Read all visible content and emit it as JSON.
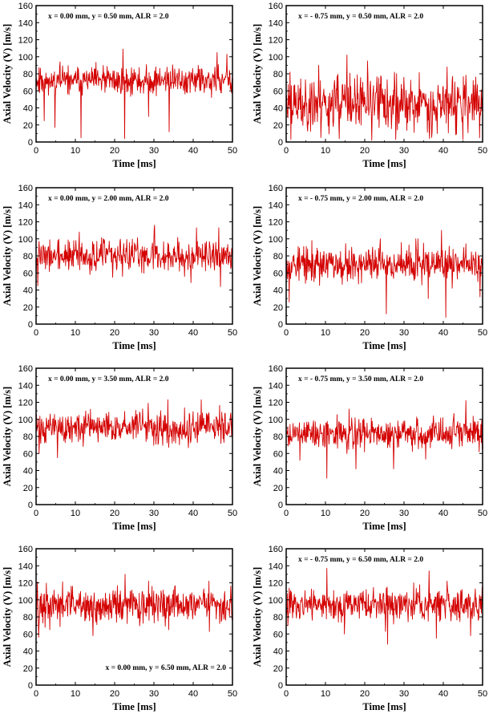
{
  "colors": {
    "series": "#d40000",
    "axis": "#000000",
    "background": "#ffffff"
  },
  "chart_data": [
    {
      "type": "line",
      "id": "p1",
      "annotation": "x = 0.00 mm, y = 0.50 mm, ALR = 2.0",
      "annotation_position": "top-left",
      "xlabel": "Time [ms]",
      "ylabel": "Axial Velocity (V) [m/s]",
      "xlim": [
        0,
        50
      ],
      "ylim": [
        0,
        160
      ],
      "xticks": [
        0,
        10,
        20,
        30,
        40,
        50
      ],
      "yticks": [
        0,
        20,
        40,
        60,
        80,
        100,
        120,
        140,
        160
      ],
      "series": [
        {
          "name": "velocity",
          "mean": 72,
          "spread": 8,
          "dips": [
            [
              2.1,
              25
            ],
            [
              4.8,
              17
            ],
            [
              11.4,
              5
            ],
            [
              22.6,
              4
            ],
            [
              28.7,
              30
            ],
            [
              33.9,
              12
            ]
          ],
          "peaks": [
            [
              22.1,
              109
            ],
            [
              46.1,
              105
            ],
            [
              48.6,
              103
            ]
          ],
          "seed": 11,
          "count": 460
        }
      ]
    },
    {
      "type": "line",
      "id": "p2",
      "annotation": "x = - 0.75 mm, y = 0.50 mm, ALR = 2.0",
      "annotation_position": "top-left",
      "xlabel": "Time [ms]",
      "ylabel": "Axial Velocity (V) [m/s]",
      "xlim": [
        0,
        50
      ],
      "ylim": [
        0,
        160
      ],
      "xticks": [
        0,
        10,
        20,
        30,
        40,
        50
      ],
      "yticks": [
        0,
        20,
        40,
        60,
        80,
        100,
        120,
        140,
        160
      ],
      "series": [
        {
          "name": "velocity",
          "mean": 45,
          "spread": 16,
          "dips": [
            [
              1.2,
              3
            ],
            [
              13.5,
              4
            ],
            [
              21.8,
              2
            ],
            [
              27.9,
              3
            ],
            [
              36.5,
              4
            ],
            [
              45.0,
              3
            ],
            [
              49.2,
              5
            ]
          ],
          "peaks": [
            [
              1.0,
              82
            ],
            [
              8.3,
              90
            ],
            [
              15.5,
              102
            ],
            [
              41.0,
              88
            ]
          ],
          "seed": 23,
          "count": 460
        }
      ]
    },
    {
      "type": "line",
      "id": "p3",
      "annotation": "x = 0.00 mm, y = 2.00 mm, ALR = 2.0",
      "annotation_position": "top-left",
      "xlabel": "Time [ms]",
      "ylabel": "Axial Velocity (V) [m/s]",
      "xlim": [
        0,
        50
      ],
      "ylim": [
        0,
        160
      ],
      "xticks": [
        0,
        10,
        20,
        30,
        40,
        50
      ],
      "yticks": [
        0,
        20,
        40,
        60,
        80,
        100,
        120,
        140,
        160
      ],
      "series": [
        {
          "name": "velocity",
          "mean": 80,
          "spread": 9,
          "dips": [
            [
              0.4,
              45
            ],
            [
              47.0,
              44
            ],
            [
              22.0,
              56
            ]
          ],
          "peaks": [
            [
              30.2,
              116
            ],
            [
              40.8,
              113
            ],
            [
              46.5,
              113
            ],
            [
              11.0,
              108
            ]
          ],
          "seed": 37,
          "count": 460
        }
      ]
    },
    {
      "type": "line",
      "id": "p4",
      "annotation": "x = - 0.75 mm, y = 2.00 mm, ALR = 2.0",
      "annotation_position": "top-left",
      "xlabel": "Time [ms]",
      "ylabel": "Axial Velocity (V) [m/s]",
      "xlim": [
        0,
        50
      ],
      "ylim": [
        0,
        160
      ],
      "xticks": [
        0,
        10,
        20,
        30,
        40,
        50
      ],
      "yticks": [
        0,
        20,
        40,
        60,
        80,
        100,
        120,
        140,
        160
      ],
      "series": [
        {
          "name": "velocity",
          "mean": 70,
          "spread": 10,
          "dips": [
            [
              0.8,
              26
            ],
            [
              25.5,
              12
            ],
            [
              40.6,
              8
            ],
            [
              36.2,
              30
            ],
            [
              49.3,
              32
            ]
          ],
          "peaks": [
            [
              39.5,
              110
            ],
            [
              33.0,
              100
            ],
            [
              6.5,
              98
            ]
          ],
          "seed": 53,
          "count": 460
        }
      ]
    },
    {
      "type": "line",
      "id": "p5",
      "annotation": "x = 0.00 mm, y = 3.50 mm, ALR = 2.0",
      "annotation_position": "top-left",
      "xlabel": "Time [ms]",
      "ylabel": "Axial Velocity (V) [m/s]",
      "xlim": [
        0,
        50
      ],
      "ylim": [
        0,
        160
      ],
      "xticks": [
        0,
        10,
        20,
        30,
        40,
        50
      ],
      "yticks": [
        0,
        20,
        40,
        60,
        80,
        100,
        120,
        140,
        160
      ],
      "series": [
        {
          "name": "velocity",
          "mean": 90,
          "spread": 9,
          "dips": [
            [
              5.4,
              55
            ],
            [
              0.8,
              60
            ]
          ],
          "peaks": [
            [
              33.6,
              123
            ],
            [
              42.0,
              123
            ],
            [
              28.5,
              119
            ]
          ],
          "seed": 71,
          "count": 460
        }
      ]
    },
    {
      "type": "line",
      "id": "p6",
      "annotation": "x = - 0.75 mm, y = 3.50 mm, ALR = 2.0",
      "annotation_position": "top-left",
      "xlabel": "Time [ms]",
      "ylabel": "Axial Velocity (V) [m/s]",
      "xlim": [
        0,
        50
      ],
      "ylim": [
        0,
        160
      ],
      "xticks": [
        0,
        10,
        20,
        30,
        40,
        50
      ],
      "yticks": [
        0,
        20,
        40,
        60,
        80,
        100,
        120,
        140,
        160
      ],
      "series": [
        {
          "name": "velocity",
          "mean": 83,
          "spread": 9,
          "dips": [
            [
              10.3,
              31
            ],
            [
              17.8,
              42
            ],
            [
              27.3,
              42
            ],
            [
              3.5,
              52
            ]
          ],
          "peaks": [
            [
              45.8,
              122
            ],
            [
              16.0,
              112
            ]
          ],
          "seed": 89,
          "count": 460
        }
      ]
    },
    {
      "type": "line",
      "id": "p7",
      "annotation": "x = 0.00 mm, y = 6.50 mm, ALR = 2.0",
      "annotation_position": "bottom-right",
      "xlabel": "Time [ms]",
      "ylabel": "Axial Velocity (V) [m/s]",
      "xlim": [
        0,
        50
      ],
      "ylim": [
        0,
        160
      ],
      "xticks": [
        0,
        10,
        20,
        30,
        40,
        50
      ],
      "yticks": [
        0,
        20,
        40,
        60,
        80,
        100,
        120,
        140,
        160
      ],
      "series": [
        {
          "name": "velocity",
          "mean": 93,
          "spread": 10,
          "dips": [
            [
              3.5,
              65
            ],
            [
              14.5,
              58
            ],
            [
              33.8,
              65
            ]
          ],
          "peaks": [
            [
              22.7,
              130
            ],
            [
              0.3,
              121
            ],
            [
              28.6,
              122
            ],
            [
              44.0,
              122
            ]
          ],
          "seed": 97,
          "count": 460
        }
      ]
    },
    {
      "type": "line",
      "id": "p8",
      "annotation": "x = - 0.75 mm, y = 6.50 mm, ALR = 2.0",
      "annotation_position": "top-left",
      "xlabel": "Time [ms]",
      "ylabel": "Axial Velocity (V) [m/s]",
      "xlim": [
        0,
        50
      ],
      "ylim": [
        0,
        160
      ],
      "xticks": [
        0,
        10,
        20,
        30,
        40,
        50
      ],
      "yticks": [
        0,
        20,
        40,
        60,
        80,
        100,
        120,
        140,
        160
      ],
      "series": [
        {
          "name": "velocity",
          "mean": 94,
          "spread": 9,
          "dips": [
            [
              25.8,
              48
            ],
            [
              38.2,
              55
            ],
            [
              14.8,
              60
            ],
            [
              47.0,
              58
            ]
          ],
          "peaks": [
            [
              10.3,
              137
            ],
            [
              36.4,
              134
            ],
            [
              41.0,
              122
            ]
          ],
          "seed": 113,
          "count": 460
        }
      ]
    }
  ]
}
